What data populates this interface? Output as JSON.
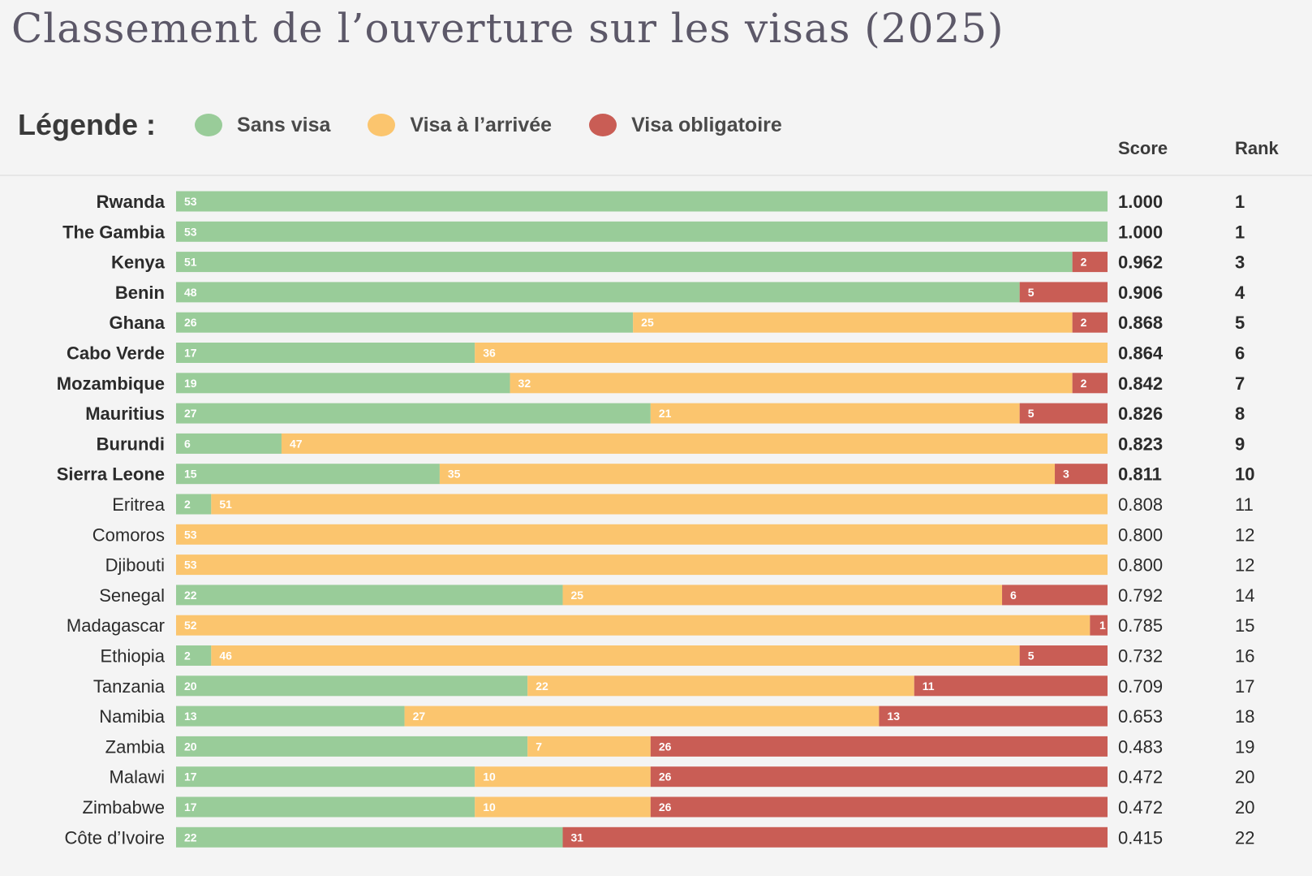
{
  "title": "Classement de l’ouverture sur les visas (2025)",
  "legend": {
    "label": "Légende :",
    "items": [
      {
        "name": "Sans visa",
        "color": "#99cc99"
      },
      {
        "name": "Visa à l’arrivée",
        "color": "#fbc56e"
      },
      {
        "name": "Visa obligatoire",
        "color": "#c95d55"
      }
    ]
  },
  "columns": {
    "score": "Score",
    "rank": "Rank"
  },
  "chart_data": {
    "type": "bar",
    "orientation": "horizontal",
    "stacked": true,
    "total": 53,
    "categories": [
      "Rwanda",
      "The Gambia",
      "Kenya",
      "Benin",
      "Ghana",
      "Cabo Verde",
      "Mozambique",
      "Mauritius",
      "Burundi",
      "Sierra Leone",
      "Eritrea",
      "Comoros",
      "Djibouti",
      "Senegal",
      "Madagascar",
      "Ethiopia",
      "Tanzania",
      "Namibia",
      "Zambia",
      "Malawi",
      "Zimbabwe",
      "Côte d’Ivoire"
    ],
    "series": [
      {
        "name": "Sans visa",
        "color": "#99cc99",
        "values": [
          53,
          53,
          51,
          48,
          26,
          17,
          19,
          27,
          6,
          15,
          2,
          0,
          0,
          22,
          0,
          2,
          20,
          13,
          20,
          17,
          17,
          22
        ]
      },
      {
        "name": "Visa à l’arrivée",
        "color": "#fbc56e",
        "values": [
          0,
          0,
          0,
          0,
          25,
          36,
          32,
          21,
          47,
          35,
          51,
          53,
          53,
          25,
          52,
          46,
          22,
          27,
          7,
          10,
          10,
          0
        ]
      },
      {
        "name": "Visa obligatoire",
        "color": "#c95d55",
        "values": [
          0,
          0,
          2,
          5,
          2,
          0,
          2,
          5,
          0,
          3,
          0,
          0,
          0,
          6,
          1,
          5,
          11,
          13,
          26,
          26,
          26,
          31
        ]
      }
    ],
    "scores": [
      "1.000",
      "1.000",
      "0.962",
      "0.906",
      "0.868",
      "0.864",
      "0.842",
      "0.826",
      "0.823",
      "0.811",
      "0.808",
      "0.800",
      "0.800",
      "0.792",
      "0.785",
      "0.732",
      "0.709",
      "0.653",
      "0.483",
      "0.472",
      "0.472",
      "0.415"
    ],
    "ranks": [
      "1",
      "1",
      "3",
      "4",
      "5",
      "6",
      "7",
      "8",
      "9",
      "10",
      "11",
      "12",
      "12",
      "14",
      "15",
      "16",
      "17",
      "18",
      "19",
      "20",
      "20",
      "22"
    ],
    "bold_rows": 10
  }
}
